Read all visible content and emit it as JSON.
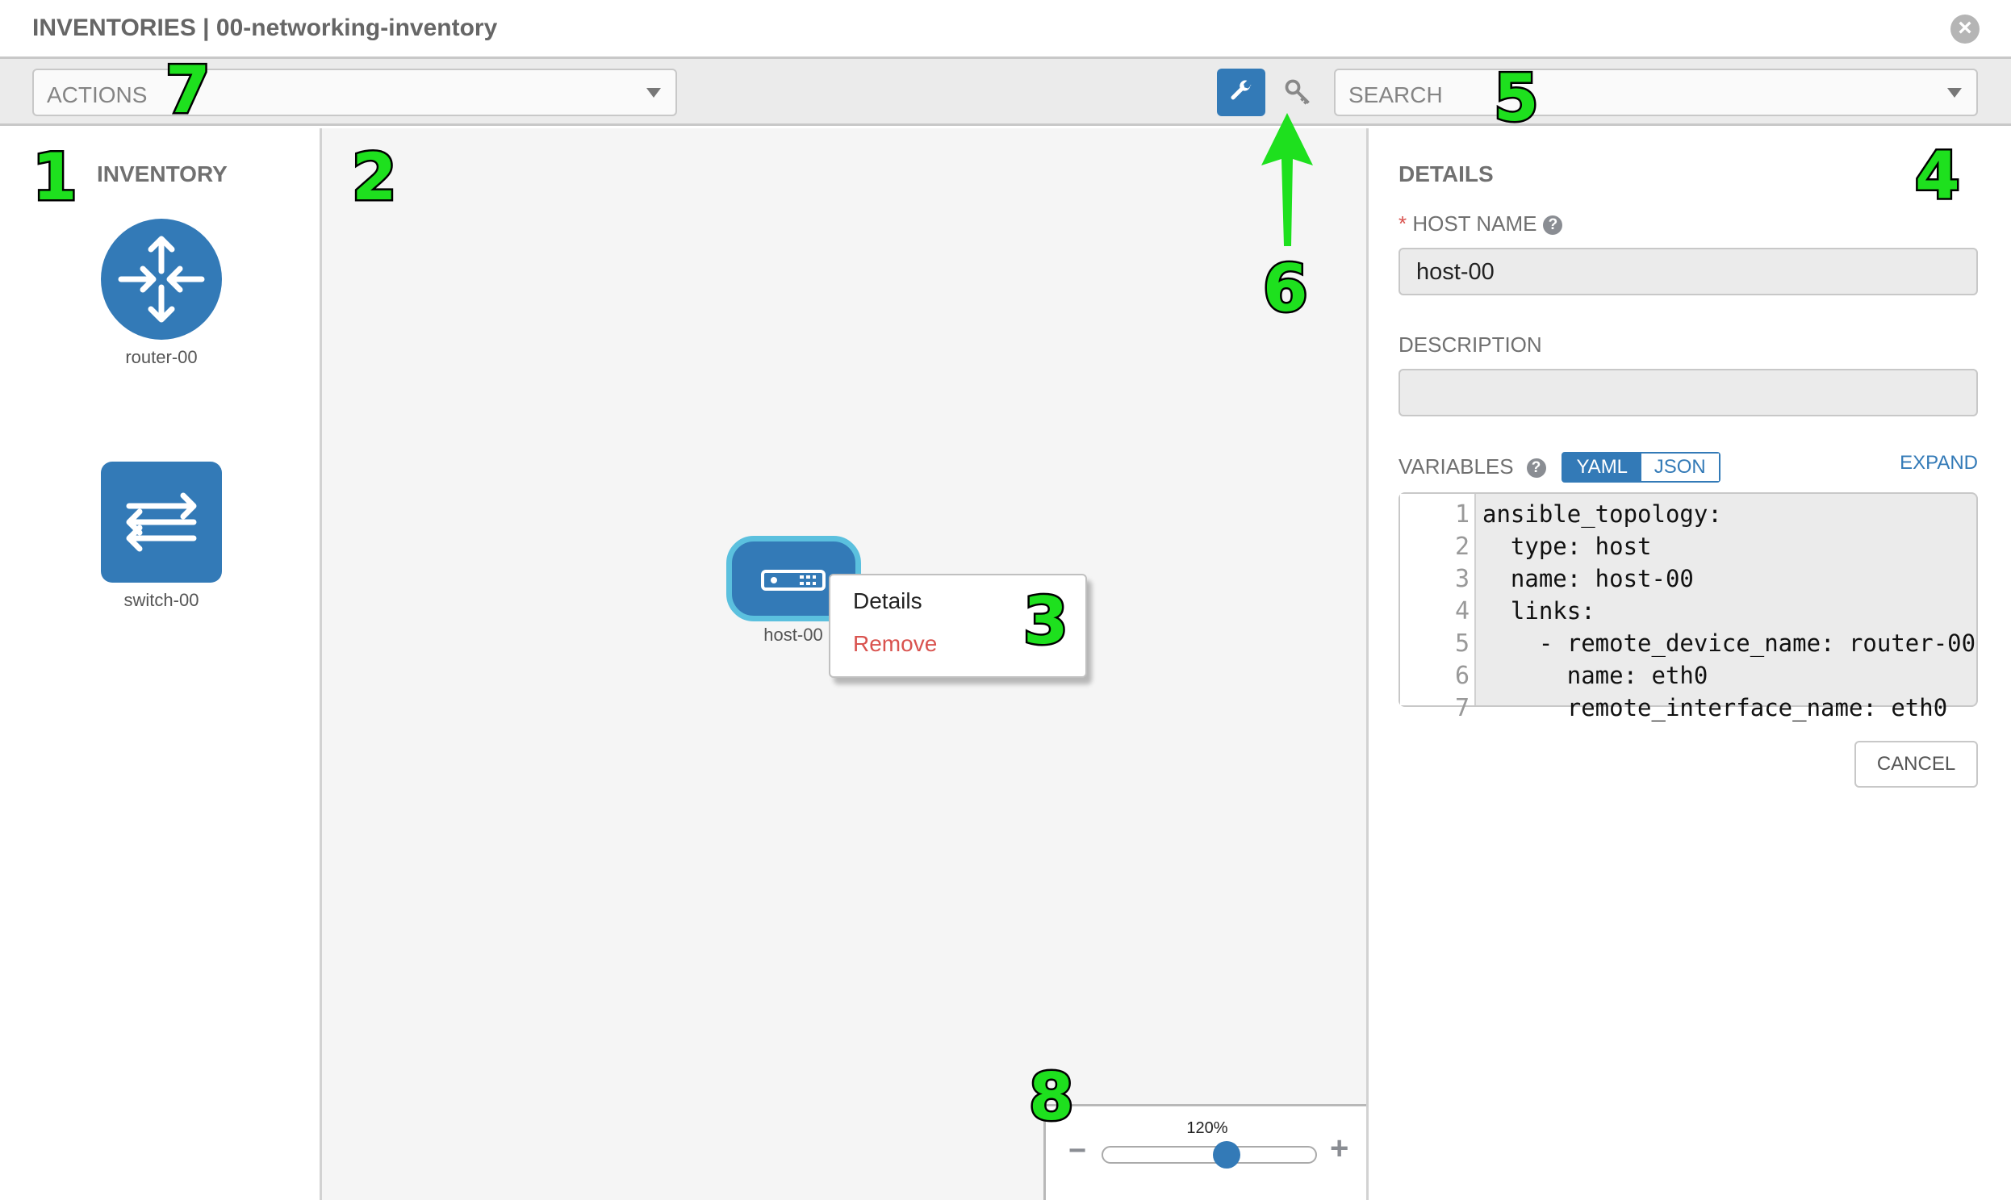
{
  "header": {
    "title": "INVENTORIES | 00-networking-inventory",
    "close_icon": "close-circle-icon"
  },
  "toolbar": {
    "actions_placeholder": "ACTIONS",
    "search_placeholder": "SEARCH",
    "mode_buttons": [
      {
        "icon": "wrench-icon",
        "active": true
      },
      {
        "icon": "key-icon",
        "active": false
      }
    ]
  },
  "inventory": {
    "title": "INVENTORY",
    "items": [
      {
        "label": "router-00",
        "icon": "router-icon"
      },
      {
        "label": "switch-00",
        "icon": "switch-icon"
      }
    ]
  },
  "canvas": {
    "node": {
      "label": "host-00",
      "icon": "server-icon"
    },
    "context_menu": {
      "details": "Details",
      "remove": "Remove"
    },
    "zoom": {
      "label": "120%",
      "level_fraction": 0.58,
      "minus": "−",
      "plus": "+"
    }
  },
  "details": {
    "title": "DETAILS",
    "required_mark": "*",
    "host_name_label": "HOST NAME",
    "host_name_value": "host-00",
    "description_label": "DESCRIPTION",
    "description_value": "",
    "variables_label": "VARIABLES",
    "yaml": "YAML",
    "json": "JSON",
    "expand": "EXPAND",
    "code_lines": [
      {
        "n": "1",
        "text": "ansible_topology:"
      },
      {
        "n": "2",
        "text": "  type: host"
      },
      {
        "n": "3",
        "text": "  name: host-00"
      },
      {
        "n": "4",
        "text": "  links:"
      },
      {
        "n": "5",
        "text": "    - remote_device_name: router-00"
      },
      {
        "n": "6",
        "text": "      name: eth0"
      },
      {
        "n": "7",
        "text": "      remote_interface_name: eth0"
      }
    ],
    "cancel": "CANCEL"
  },
  "annotations": [
    "1",
    "2",
    "3",
    "4",
    "5",
    "6",
    "7",
    "8"
  ],
  "colors": {
    "primary": "#337ab7",
    "danger": "#d9534f",
    "annotation": "#1ee01e"
  }
}
